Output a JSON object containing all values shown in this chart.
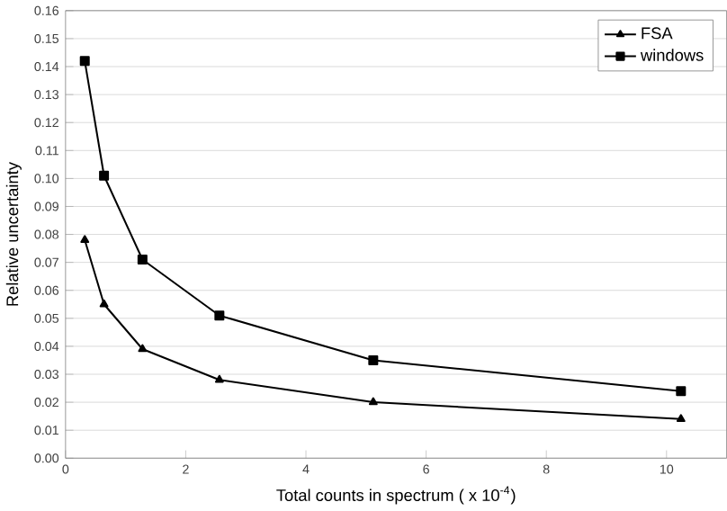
{
  "chart_data": {
    "type": "line",
    "xlabel": "Total counts in spectrum ( x 10$^{-4}$)",
    "ylabel": "Relative uncertainty",
    "series": [
      {
        "name": "FSA",
        "color": "#000000",
        "marker": "triangle",
        "x": [
          0.32,
          0.64,
          1.28,
          2.56,
          5.12,
          10.24
        ],
        "values": [
          0.078,
          0.055,
          0.039,
          0.028,
          0.02,
          0.014
        ]
      },
      {
        "name": "windows",
        "color": "#000000",
        "marker": "square",
        "x": [
          0.32,
          0.64,
          1.28,
          2.56,
          5.12,
          10.24
        ],
        "values": [
          0.142,
          0.101,
          0.071,
          0.051,
          0.035,
          0.024
        ]
      }
    ],
    "xlim": [
      0,
      11
    ],
    "xticks": [
      0,
      2,
      4,
      6,
      8,
      10
    ],
    "ylim": [
      0,
      0.16
    ],
    "yticks": [
      {
        "value": 0,
        "label": "0.00"
      },
      {
        "value": 0.01,
        "label": "0.01"
      },
      {
        "value": 0.02,
        "label": "0.02"
      },
      {
        "value": 0.03,
        "label": "0.03"
      },
      {
        "value": 0.04,
        "label": "0.04"
      },
      {
        "value": 0.05,
        "label": "0.05"
      },
      {
        "value": 0.06,
        "label": "0.06"
      },
      {
        "value": 0.07,
        "label": "0.07"
      },
      {
        "value": 0.08,
        "label": "0.08"
      },
      {
        "value": 0.09,
        "label": "0.09"
      },
      {
        "value": 0.1,
        "label": "0.10"
      },
      {
        "value": 0.11,
        "label": "0.11"
      },
      {
        "value": 0.12,
        "label": "0.12"
      },
      {
        "value": 0.13,
        "label": "0.13"
      },
      {
        "value": 0.14,
        "label": "0.14"
      },
      {
        "value": 0.15,
        "label": "0.15"
      },
      {
        "value": 0.16,
        "label": "0.16"
      }
    ],
    "grid": "y",
    "legend": "top right",
    "line_style": "solid"
  }
}
